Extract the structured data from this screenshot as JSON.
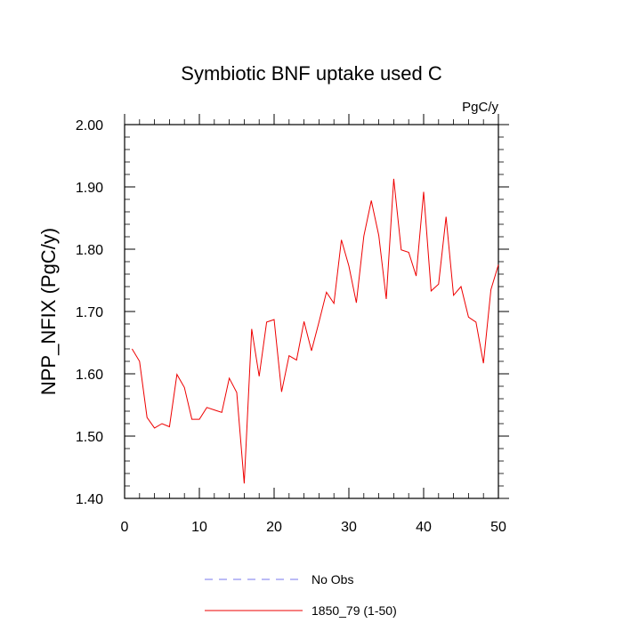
{
  "chart_data": {
    "type": "line",
    "title": "Symbiotic BNF uptake used C",
    "units_label": "PgC/y",
    "ylabel": "NPP_NFIX  (PgC/y)",
    "xlabel": "",
    "xlim": [
      0,
      50
    ],
    "ylim": [
      1.4,
      2.0
    ],
    "x_ticks": [
      0,
      10,
      20,
      30,
      40,
      50
    ],
    "x_tick_labels": [
      "0",
      "10",
      "20",
      "30",
      "40",
      "50"
    ],
    "y_ticks": [
      1.4,
      1.5,
      1.6,
      1.7,
      1.8,
      1.9,
      2.0
    ],
    "y_tick_labels": [
      "1.40",
      "1.50",
      "1.60",
      "1.70",
      "1.80",
      "1.90",
      "2.00"
    ],
    "grid": false,
    "legend_position": "bottom-center",
    "legend": [
      {
        "name": "No Obs",
        "color": "#7777ee",
        "dash": "dashed"
      },
      {
        "name": "1850_79 (1-50)",
        "color": "#ee0000",
        "dash": "solid"
      }
    ],
    "series": [
      {
        "name": "1850_79 (1-50)",
        "color": "#ee0000",
        "x": [
          1,
          2,
          3,
          4,
          5,
          6,
          7,
          8,
          9,
          10,
          11,
          12,
          13,
          14,
          15,
          16,
          17,
          18,
          19,
          20,
          21,
          22,
          23,
          24,
          25,
          26,
          27,
          28,
          29,
          30,
          31,
          32,
          33,
          34,
          35,
          36,
          37,
          38,
          39,
          40,
          41,
          42,
          43,
          44,
          45,
          46,
          47,
          48,
          49,
          50
        ],
        "values": [
          1.64,
          1.62,
          1.53,
          1.513,
          1.52,
          1.515,
          1.599,
          1.578,
          1.527,
          1.527,
          1.546,
          1.542,
          1.538,
          1.593,
          1.57,
          1.424,
          1.672,
          1.596,
          1.683,
          1.687,
          1.571,
          1.629,
          1.622,
          1.684,
          1.637,
          1.683,
          1.731,
          1.713,
          1.815,
          1.773,
          1.714,
          1.821,
          1.878,
          1.822,
          1.72,
          1.913,
          1.799,
          1.795,
          1.757,
          1.892,
          1.733,
          1.744,
          1.852,
          1.726,
          1.74,
          1.691,
          1.683,
          1.617,
          1.735,
          1.775
        ]
      }
    ]
  }
}
